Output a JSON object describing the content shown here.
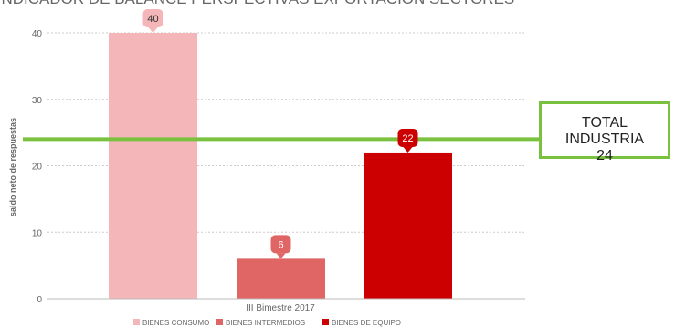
{
  "chart_data": {
    "type": "bar",
    "title": "INDICADOR DE BALANCE PERSPECTIVAS EXPORTACION SECTORES",
    "ylabel": "saldo neto de respuestas",
    "xlabel": "",
    "category": "III Bimestre 2017",
    "ylim": [
      0,
      40
    ],
    "yticks": [
      0,
      10,
      20,
      30,
      40
    ],
    "grid": true,
    "legend_position": "bottom",
    "series": [
      {
        "name": "BIENES CONSUMO",
        "value": 40,
        "color": "#f4b6b8"
      },
      {
        "name": "BIENES INTERMEDIOS",
        "value": 6,
        "color": "#e06666"
      },
      {
        "name": "BIENES DE EQUIPO",
        "value": 22,
        "color": "#cc0000"
      }
    ],
    "reference_line": {
      "label": "TOTAL INDUSTRIA",
      "value": 24,
      "color": "#7ac13f"
    }
  }
}
